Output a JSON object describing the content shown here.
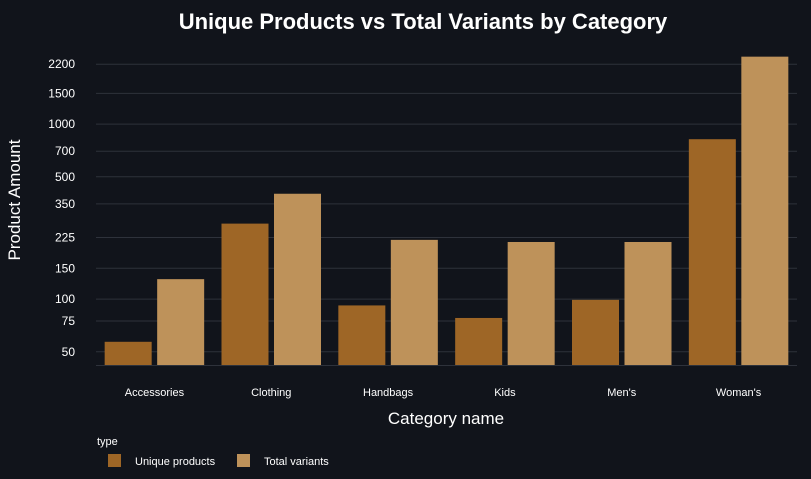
{
  "chart_data": {
    "type": "bar",
    "title": "Unique Products vs Total Variants by Category",
    "xlabel": "Category name",
    "ylabel": "Product Amount",
    "y_scale": "log",
    "y_ticks": [
      50,
      75,
      100,
      150,
      225,
      350,
      500,
      700,
      1000,
      1500,
      2200
    ],
    "categories": [
      "Accessories",
      "Clothing",
      "Handbags",
      "Kids",
      "Men's",
      "Woman's"
    ],
    "legend": {
      "title": "type",
      "placement": "bottom-left"
    },
    "series": [
      {
        "name": "Unique products",
        "color": "#9e6626",
        "values": [
          57,
          270,
          92,
          78,
          99,
          820
        ]
      },
      {
        "name": "Total variants",
        "color": "#be925a",
        "values": [
          130,
          400,
          218,
          212,
          212,
          2430
        ]
      }
    ],
    "grid": true,
    "colors": {
      "background": "#11141b",
      "grid": "#2e323b",
      "text": "#ffffff"
    }
  }
}
